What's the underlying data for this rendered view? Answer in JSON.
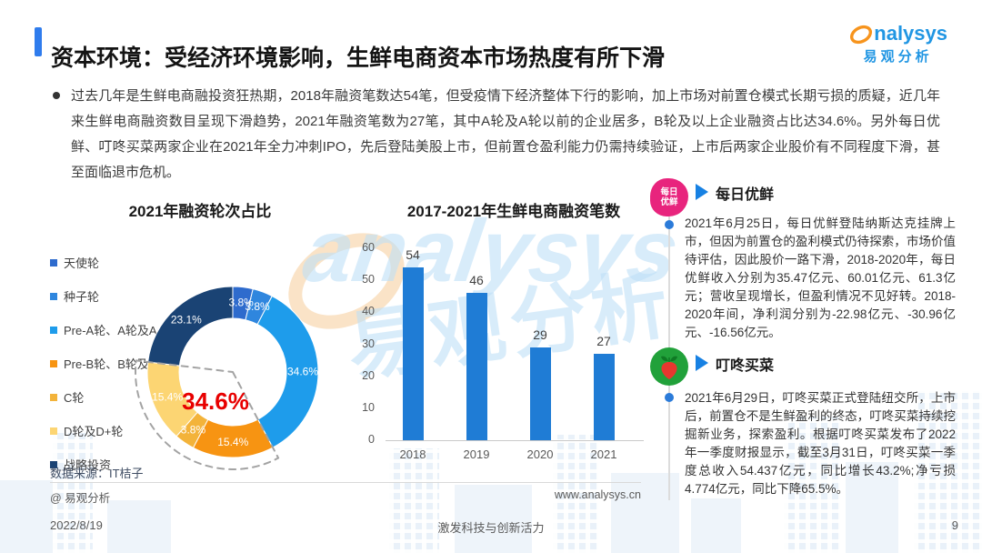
{
  "page": {
    "title": "资本环境：受经济环境影响，生鲜电商资本市场热度有所下滑"
  },
  "logo": {
    "brand": "analysys",
    "brand_tail": "nalysys",
    "brand_cn": "易观分析"
  },
  "intro": "过去几年是生鲜电商融投资狂热期，2018年融资笔数达54笔，但受疫情下经济整体下行的影响，加上市场对前置仓模式长期亏损的质疑，近几年来生鲜电商融资数目呈现下滑趋势，2021年融资笔数为27笔，其中A轮及A轮以前的企业居多，B轮及以上企业融资占比达34.6%。另外每日优鲜、叮咚买菜两家企业在2021年全力冲刺IPO，先后登陆美股上市，但前置仓盈利能力仍需持续验证，上市后两家企业股价有不同程度下滑，甚至面临退市危机。",
  "chart_data": [
    {
      "type": "pie",
      "donut": true,
      "title": "2021年融资轮次占比",
      "labels": [
        "天使轮",
        "种子轮",
        "Pre-A轮、A轮及A+",
        "Pre-B轮、B轮及B+",
        "C轮",
        "D轮及D+轮",
        "战略投资"
      ],
      "values": [
        3.8,
        3.8,
        34.6,
        15.4,
        3.8,
        15.4,
        23.1
      ],
      "colors": [
        "#2e6bcd",
        "#2f86de",
        "#1e9ceb",
        "#f79412",
        "#f3b33a",
        "#fcd573",
        "#1a4374"
      ],
      "center_label": "34.6%",
      "center_label_color": "#e80000",
      "highlight": {
        "slices": [
          "Pre-B轮、B轮及B+",
          "C轮",
          "D轮及D+轮"
        ],
        "style": "dashed-outline"
      },
      "legend_position": "left"
    },
    {
      "type": "bar",
      "title": "2017-2021年生鲜电商融资笔数",
      "categories": [
        "2018",
        "2019",
        "2020",
        "2021"
      ],
      "values": [
        54,
        46,
        29,
        27
      ],
      "bar_color": "#1f7cd5",
      "xlabel": "",
      "ylabel": "",
      "ylim": [
        0,
        60
      ],
      "yticks": [
        0,
        10,
        20,
        30,
        40,
        50,
        60
      ],
      "grid": false,
      "legend": "none"
    }
  ],
  "companies": [
    {
      "name": "每日优鲜",
      "logo_text": "每日优鲜",
      "logo_icon": "meiriyouxian-badge",
      "text": "2021年6月25日，每日优鲜登陆纳斯达克挂牌上市，但因为前置仓的盈利模式仍待探索，市场价值待评估，因此股价一路下滑，2018-2020年，每日优鲜收入分别为35.47亿元、60.01亿元、61.3亿元；营收呈现增长，但盈利情况不见好转。2018-2020年间，净利润分别为-22.98亿元、-30.96亿元、-16.56亿元。"
    },
    {
      "name": "叮咚买菜",
      "logo_icon": "radish-icon",
      "text": "2021年6月29日，叮咚买菜正式登陆纽交所，上市后，前置仓不是生鲜盈利的终态，叮咚买菜持续挖掘新业务，探索盈利。根据叮咚买菜发布了2022年一季度财报显示，截至3月31日，叮咚买菜一季度总收入54.437亿元，同比增长43.2%;净亏损4.774亿元，同比下降65.5%。"
    }
  ],
  "source": {
    "label": "数据来源：IT桔子",
    "credit": "@ 易观分析",
    "website": "www.analysys.cn"
  },
  "footer": {
    "date": "2022/8/19",
    "slogan": "激发科技与创新活力",
    "page_number": "9"
  },
  "watermark": {
    "text_en": "analysys",
    "text_cn": "易观分析"
  },
  "colors": {
    "accent_blue": "#2f7ced",
    "brand_blue": "#2196e3",
    "brand_orange": "#f7941d",
    "meiriyouxian_pink": "#e8247d",
    "dingdong_green": "#21a13a",
    "highlight_red": "#e80000",
    "bar_blue": "#1f7cd5"
  }
}
